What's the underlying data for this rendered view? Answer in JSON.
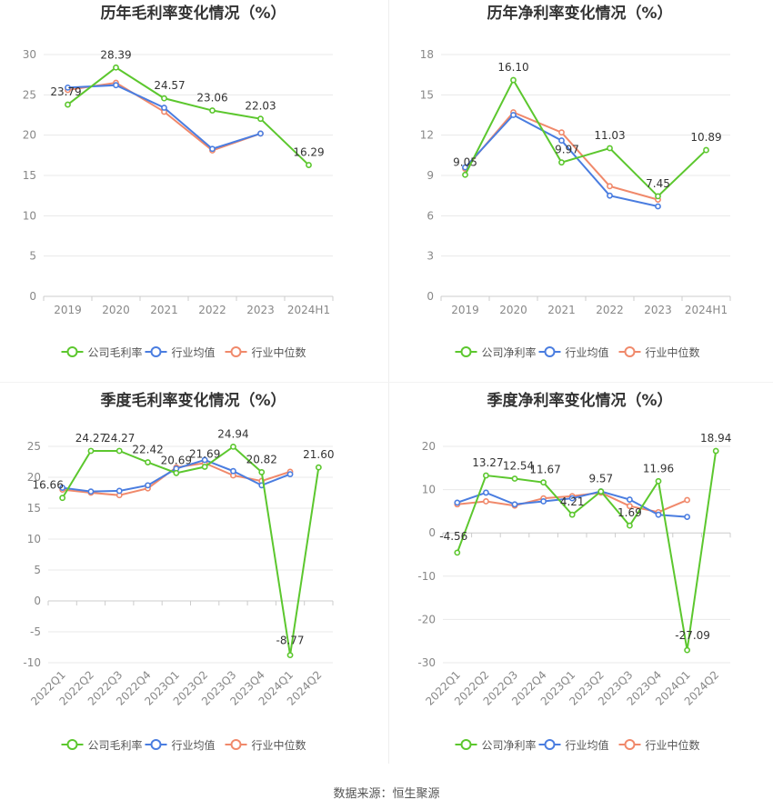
{
  "source_note": "数据来源：恒生聚源",
  "colors": {
    "company": "#5cc72e",
    "industry_avg": "#4a7de0",
    "industry_median": "#f0896b",
    "grid": "#e8e8e8",
    "axis_text": "#888888",
    "title": "#333333"
  },
  "chart_data": [
    {
      "type": "line",
      "title": "历年毛利率变化情况（%）",
      "categories": [
        "2019",
        "2020",
        "2021",
        "2022",
        "2023",
        "2024H1"
      ],
      "yticks": [
        0,
        5,
        10,
        15,
        20,
        25,
        30
      ],
      "ylim": [
        0,
        30
      ],
      "grid": true,
      "legend_position": "bottom",
      "series": [
        {
          "name": "公司毛利率",
          "values": [
            23.79,
            28.39,
            24.57,
            23.06,
            22.03,
            16.29
          ],
          "labeled": true
        },
        {
          "name": "行业均值",
          "values": [
            25.9,
            26.2,
            23.4,
            18.3,
            20.2,
            null
          ]
        },
        {
          "name": "行业中位数",
          "values": [
            25.6,
            26.5,
            22.9,
            18.1,
            20.2,
            null
          ]
        }
      ]
    },
    {
      "type": "line",
      "title": "历年净利率变化情况（%）",
      "categories": [
        "2019",
        "2020",
        "2021",
        "2022",
        "2023",
        "2024H1"
      ],
      "yticks": [
        0,
        3,
        6,
        9,
        12,
        15,
        18
      ],
      "ylim": [
        0,
        18
      ],
      "grid": true,
      "legend_position": "bottom",
      "series": [
        {
          "name": "公司净利率",
          "values": [
            9.05,
            16.1,
            9.97,
            11.03,
            7.45,
            10.89
          ],
          "labeled": true
        },
        {
          "name": "行业均值",
          "values": [
            9.6,
            13.5,
            11.6,
            7.5,
            6.7,
            null
          ]
        },
        {
          "name": "行业中位数",
          "values": [
            9.5,
            13.7,
            12.2,
            8.2,
            7.2,
            null
          ]
        }
      ]
    },
    {
      "type": "line",
      "title": "季度毛利率变化情况（%）",
      "categories": [
        "2022Q1",
        "2022Q2",
        "2022Q3",
        "2022Q4",
        "2023Q1",
        "2023Q2",
        "2023Q3",
        "2023Q4",
        "2024Q1",
        "2024Q2"
      ],
      "yticks": [
        -10,
        -5,
        0,
        5,
        10,
        15,
        20,
        25
      ],
      "ylim": [
        -10,
        25
      ],
      "grid": true,
      "legend_position": "bottom",
      "series": [
        {
          "name": "公司毛利率",
          "values": [
            16.66,
            24.27,
            24.27,
            22.42,
            20.69,
            21.69,
            24.94,
            20.82,
            -8.77,
            21.6
          ],
          "labeled": true
        },
        {
          "name": "行业均值",
          "values": [
            18.3,
            17.7,
            17.8,
            18.7,
            21.4,
            22.8,
            21.0,
            18.7,
            20.5,
            null
          ]
        },
        {
          "name": "行业中位数",
          "values": [
            18.0,
            17.5,
            17.1,
            18.2,
            21.6,
            22.3,
            20.3,
            19.4,
            20.9,
            null
          ]
        }
      ]
    },
    {
      "type": "line",
      "title": "季度净利率变化情况（%）",
      "categories": [
        "2022Q1",
        "2022Q2",
        "2022Q3",
        "2022Q4",
        "2023Q1",
        "2023Q2",
        "2023Q3",
        "2023Q4",
        "2024Q1",
        "2024Q2"
      ],
      "yticks": [
        -30,
        -20,
        -10,
        0,
        10,
        20
      ],
      "ylim": [
        -30,
        20
      ],
      "grid": true,
      "legend_position": "bottom",
      "series": [
        {
          "name": "公司净利率",
          "values": [
            -4.56,
            13.27,
            12.54,
            11.67,
            4.21,
            9.57,
            1.69,
            11.96,
            -27.09,
            18.94
          ],
          "labeled": true
        },
        {
          "name": "行业均值",
          "values": [
            7.0,
            9.3,
            6.6,
            7.3,
            8.0,
            9.6,
            7.7,
            4.2,
            3.7,
            null
          ]
        },
        {
          "name": "行业中位数",
          "values": [
            6.6,
            7.3,
            6.3,
            8.0,
            8.5,
            9.3,
            6.2,
            4.8,
            7.6,
            null
          ]
        }
      ]
    }
  ]
}
